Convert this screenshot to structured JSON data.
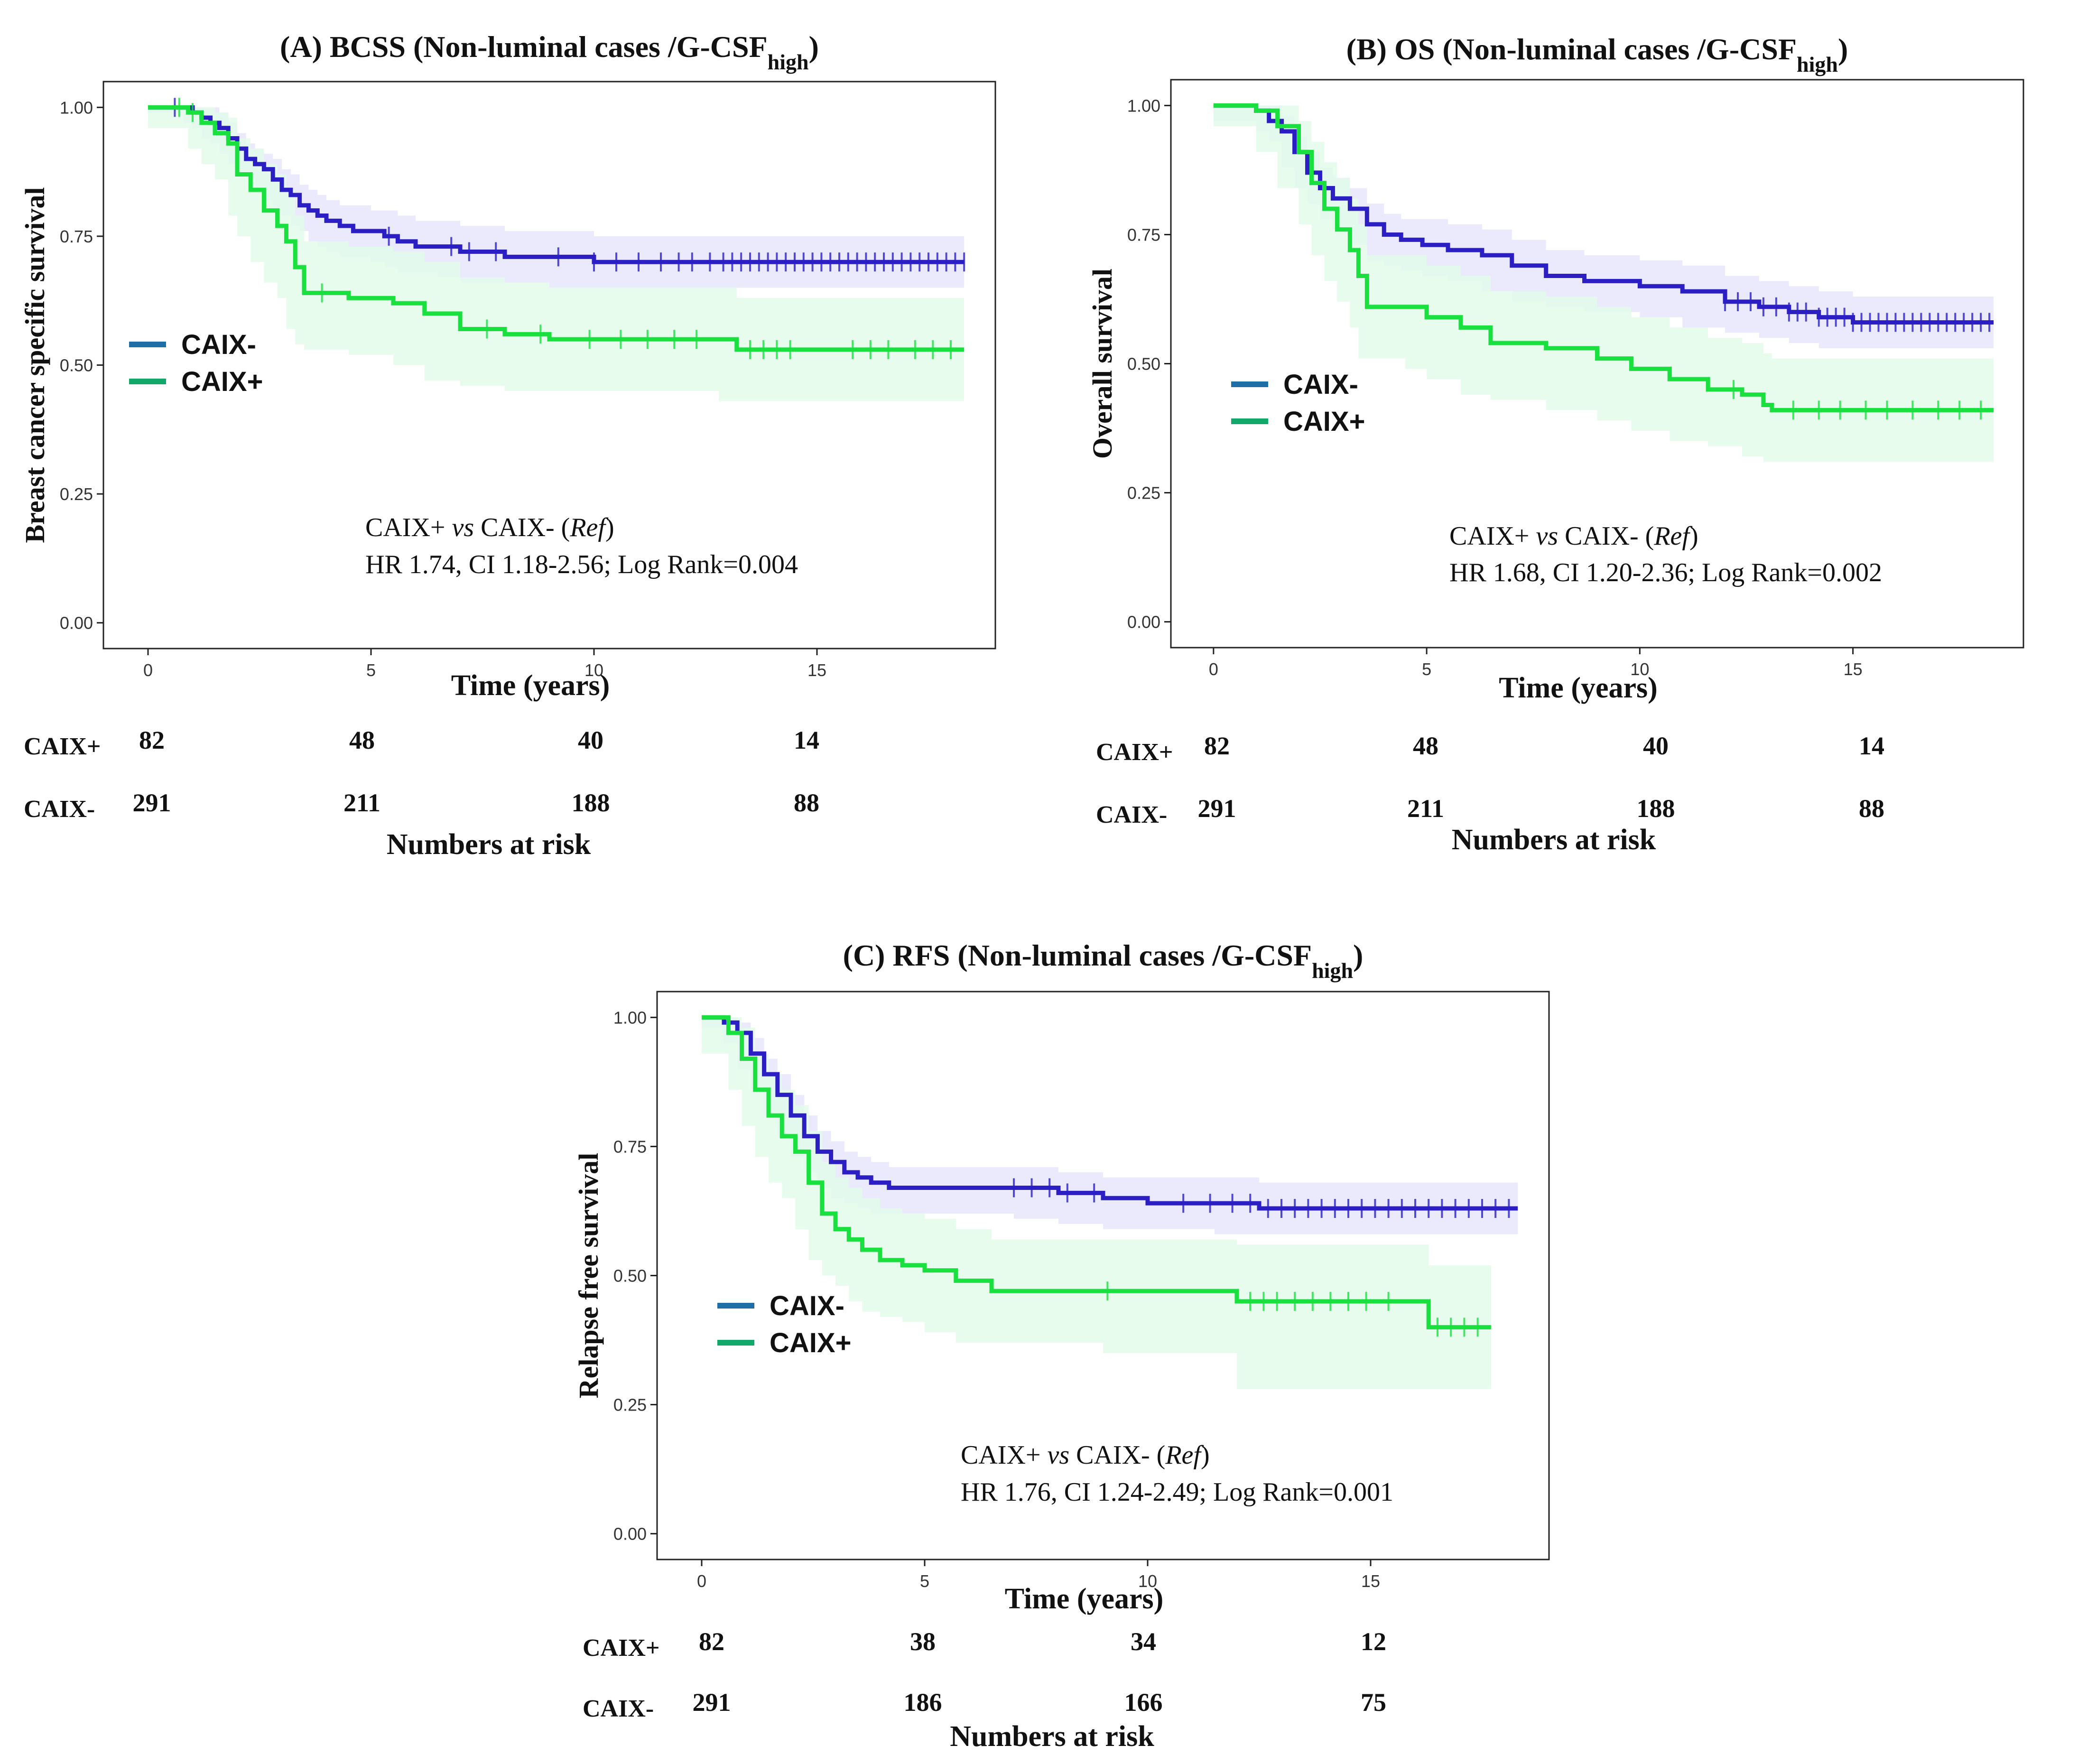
{
  "colors": {
    "caix_neg_line": "#2b1fc4",
    "caix_neg_band": "#e7e6fb",
    "caix_pos_line": "#19e03e",
    "caix_pos_band": "#e3fbea",
    "legend_neg": "#1f6fa6",
    "legend_pos": "#12a86a",
    "axis": "#222222",
    "text": "#111111"
  },
  "chart_data": [
    {
      "id": "A",
      "type": "line",
      "title_main": "(A) BCSS (Non-luminal cases /G-CSF",
      "title_sub": "high",
      "title_close": ")",
      "xlabel": "Time (years)",
      "ylabel": "Breast cancer specific survival",
      "xlim": [
        -1,
        19
      ],
      "ylim": [
        -0.05,
        1.05
      ],
      "xticks": [
        "0",
        "5",
        "10",
        "15"
      ],
      "yticks": [
        "0.00",
        "0.25",
        "0.50",
        "0.75",
        "1.00"
      ],
      "legend": [
        "CAIX-",
        "CAIX+"
      ],
      "annotation": {
        "line1_a": "CAIX+ ",
        "line1_vs": "vs",
        "line1_b": " CAIX- (",
        "line1_ref": "Ref",
        "line1_c": ")",
        "line2": "HR 1.74, CI 1.18-2.56; Log Rank=0.004"
      },
      "series": [
        {
          "name": "CAIX-",
          "x": [
            0,
            0.8,
            1.0,
            1.2,
            1.4,
            1.6,
            1.8,
            2.0,
            2.2,
            2.4,
            2.6,
            2.8,
            3.0,
            3.2,
            3.4,
            3.6,
            3.8,
            4.0,
            4.3,
            4.6,
            5.0,
            5.3,
            5.6,
            6.0,
            6.5,
            7.0,
            8.0,
            9.0,
            10.0,
            11.0,
            12.0,
            13.0,
            14.0,
            16.0,
            18.3
          ],
          "y": [
            1.0,
            1.0,
            0.99,
            0.98,
            0.97,
            0.96,
            0.94,
            0.92,
            0.9,
            0.89,
            0.88,
            0.86,
            0.84,
            0.83,
            0.81,
            0.8,
            0.79,
            0.78,
            0.77,
            0.76,
            0.76,
            0.75,
            0.74,
            0.73,
            0.73,
            0.72,
            0.71,
            0.71,
            0.7,
            0.7,
            0.7,
            0.7,
            0.7,
            0.7,
            0.7
          ],
          "lower": [
            1.0,
            0.99,
            0.97,
            0.96,
            0.94,
            0.93,
            0.91,
            0.89,
            0.87,
            0.86,
            0.84,
            0.82,
            0.8,
            0.79,
            0.77,
            0.76,
            0.74,
            0.73,
            0.72,
            0.71,
            0.71,
            0.7,
            0.69,
            0.68,
            0.68,
            0.67,
            0.66,
            0.66,
            0.65,
            0.65,
            0.65,
            0.65,
            0.65,
            0.65,
            0.65
          ],
          "upper": [
            1.0,
            1.0,
            1.0,
            1.0,
            1.0,
            0.99,
            0.97,
            0.95,
            0.93,
            0.92,
            0.91,
            0.9,
            0.88,
            0.87,
            0.85,
            0.84,
            0.83,
            0.82,
            0.81,
            0.81,
            0.8,
            0.8,
            0.79,
            0.78,
            0.78,
            0.77,
            0.76,
            0.76,
            0.75,
            0.75,
            0.75,
            0.75,
            0.75,
            0.75,
            0.75
          ],
          "censor_x": [
            0.6,
            5.4,
            6.8,
            7.2,
            7.8,
            9.2,
            10.0,
            10.5,
            11.0,
            11.5,
            11.9,
            12.2,
            12.6,
            12.9,
            13.1,
            13.3,
            13.5,
            13.7,
            13.9,
            14.1,
            14.3,
            14.5,
            14.7,
            14.9,
            15.1,
            15.3,
            15.5,
            15.7,
            15.9,
            16.1,
            16.3,
            16.5,
            16.7,
            16.9,
            17.1,
            17.3,
            17.5,
            17.7,
            17.9,
            18.1,
            18.3
          ]
        },
        {
          "name": "CAIX+",
          "x": [
            0,
            0.9,
            1.2,
            1.5,
            1.8,
            2.0,
            2.3,
            2.6,
            2.9,
            3.1,
            3.3,
            3.5,
            4.5,
            5.5,
            6.2,
            7.0,
            8.0,
            9.0,
            12.8,
            13.2,
            18.3
          ],
          "y": [
            1.0,
            0.99,
            0.97,
            0.95,
            0.93,
            0.87,
            0.84,
            0.8,
            0.77,
            0.74,
            0.69,
            0.64,
            0.63,
            0.62,
            0.6,
            0.57,
            0.56,
            0.55,
            0.55,
            0.53,
            0.53
          ],
          "lower": [
            1.0,
            0.96,
            0.92,
            0.89,
            0.86,
            0.79,
            0.75,
            0.7,
            0.66,
            0.63,
            0.57,
            0.54,
            0.53,
            0.52,
            0.5,
            0.47,
            0.46,
            0.45,
            0.45,
            0.43,
            0.43
          ],
          "upper": [
            1.0,
            1.0,
            1.0,
            0.99,
            0.98,
            0.94,
            0.92,
            0.89,
            0.87,
            0.84,
            0.79,
            0.74,
            0.73,
            0.72,
            0.7,
            0.67,
            0.66,
            0.65,
            0.65,
            0.63,
            0.63
          ],
          "censor_x": [
            0.7,
            1.0,
            3.9,
            7.6,
            8.8,
            9.9,
            10.6,
            11.2,
            11.8,
            12.3,
            13.5,
            13.8,
            14.1,
            14.4,
            15.8,
            16.2,
            16.6,
            17.2,
            17.6,
            18.0
          ]
        }
      ],
      "risk": {
        "title": "Numbers at risk",
        "rows": [
          {
            "label": "CAIX+",
            "values": [
              "82",
              "48",
              "40",
              "14"
            ]
          },
          {
            "label": "CAIX-",
            "values": [
              "291",
              "211",
              "188",
              "88"
            ]
          }
        ]
      }
    },
    {
      "id": "B",
      "type": "line",
      "title_main": "(B) OS (Non-luminal cases /G-CSF",
      "title_sub": "high",
      "title_close": ")",
      "xlabel": "Time (years)",
      "ylabel": "Overall survival",
      "xlim": [
        -1,
        19
      ],
      "ylim": [
        -0.05,
        1.05
      ],
      "xticks": [
        "0",
        "5",
        "10",
        "15"
      ],
      "yticks": [
        "0.00",
        "0.25",
        "0.50",
        "0.75",
        "1.00"
      ],
      "legend": [
        "CAIX-",
        "CAIX+"
      ],
      "annotation": {
        "line1_a": "CAIX+ ",
        "line1_vs": "vs",
        "line1_b": " CAIX- (",
        "line1_ref": "Ref",
        "line1_c": ")",
        "line2": "HR 1.68, CI 1.20-2.36; Log Rank=0.002"
      },
      "series": [
        {
          "name": "CAIX-",
          "x": [
            0,
            1.0,
            1.3,
            1.6,
            1.9,
            2.2,
            2.5,
            2.8,
            3.2,
            3.6,
            4.0,
            4.4,
            4.9,
            5.5,
            6.3,
            7.0,
            7.8,
            8.7,
            10.0,
            11.0,
            12.0,
            12.8,
            13.5,
            14.2,
            15.0,
            18.3
          ],
          "y": [
            1.0,
            0.99,
            0.97,
            0.95,
            0.91,
            0.87,
            0.84,
            0.82,
            0.8,
            0.77,
            0.75,
            0.74,
            0.73,
            0.72,
            0.71,
            0.69,
            0.67,
            0.66,
            0.65,
            0.64,
            0.62,
            0.61,
            0.6,
            0.59,
            0.58,
            0.58
          ],
          "lower": [
            1.0,
            0.97,
            0.95,
            0.93,
            0.88,
            0.84,
            0.81,
            0.78,
            0.76,
            0.73,
            0.7,
            0.69,
            0.68,
            0.67,
            0.66,
            0.64,
            0.62,
            0.61,
            0.6,
            0.59,
            0.57,
            0.56,
            0.55,
            0.54,
            0.53,
            0.53
          ],
          "upper": [
            1.0,
            1.0,
            1.0,
            0.98,
            0.94,
            0.91,
            0.88,
            0.86,
            0.84,
            0.81,
            0.79,
            0.78,
            0.78,
            0.77,
            0.76,
            0.74,
            0.72,
            0.71,
            0.7,
            0.69,
            0.67,
            0.66,
            0.65,
            0.64,
            0.63,
            0.63
          ],
          "censor_x": [
            12.0,
            12.3,
            12.6,
            12.9,
            13.2,
            13.5,
            13.7,
            13.9,
            14.2,
            14.4,
            14.6,
            14.8,
            15.0,
            15.2,
            15.4,
            15.6,
            15.8,
            16.0,
            16.2,
            16.4,
            16.6,
            16.8,
            17.0,
            17.2,
            17.4,
            17.6,
            17.8,
            18.0,
            18.2
          ]
        },
        {
          "name": "CAIX+",
          "x": [
            0,
            1.0,
            1.5,
            2.0,
            2.3,
            2.6,
            2.9,
            3.2,
            3.4,
            3.6,
            4.5,
            5.0,
            5.8,
            6.5,
            7.8,
            9.0,
            9.8,
            10.7,
            11.6,
            12.4,
            12.9,
            13.1,
            18.3
          ],
          "y": [
            1.0,
            0.99,
            0.96,
            0.91,
            0.85,
            0.8,
            0.76,
            0.72,
            0.67,
            0.61,
            0.61,
            0.59,
            0.57,
            0.54,
            0.53,
            0.51,
            0.49,
            0.47,
            0.45,
            0.44,
            0.42,
            0.41,
            0.41
          ],
          "lower": [
            1.0,
            0.96,
            0.91,
            0.84,
            0.77,
            0.71,
            0.66,
            0.62,
            0.57,
            0.51,
            0.51,
            0.49,
            0.47,
            0.44,
            0.43,
            0.41,
            0.39,
            0.37,
            0.35,
            0.34,
            0.32,
            0.31,
            0.31
          ],
          "upper": [
            1.0,
            1.0,
            1.0,
            0.97,
            0.93,
            0.89,
            0.86,
            0.82,
            0.77,
            0.71,
            0.71,
            0.69,
            0.67,
            0.64,
            0.63,
            0.61,
            0.59,
            0.57,
            0.55,
            0.54,
            0.52,
            0.51,
            0.51
          ],
          "censor_x": [
            12.2,
            13.6,
            14.2,
            14.7,
            15.3,
            15.8,
            16.4,
            17.0,
            17.5,
            18.0
          ]
        }
      ],
      "risk": {
        "title": "Numbers at risk",
        "rows": [
          {
            "label": "CAIX+",
            "values": [
              "82",
              "48",
              "40",
              "14"
            ]
          },
          {
            "label": "CAIX-",
            "values": [
              "291",
              "211",
              "188",
              "88"
            ]
          }
        ]
      }
    },
    {
      "id": "C",
      "type": "line",
      "title_main": "(C) RFS (Non-luminal cases /G-CSF",
      "title_sub": "high",
      "title_close": ")",
      "xlabel": "Time (years)",
      "ylabel": "Relapse free survival",
      "xlim": [
        -1,
        19
      ],
      "ylim": [
        -0.05,
        1.05
      ],
      "xticks": [
        "0",
        "5",
        "10",
        "15"
      ],
      "yticks": [
        "0.00",
        "0.25",
        "0.50",
        "0.75",
        "1.00"
      ],
      "legend": [
        "CAIX-",
        "CAIX+"
      ],
      "annotation": {
        "line1_a": "CAIX+ ",
        "line1_vs": "vs",
        "line1_b": " CAIX- (",
        "line1_ref": "Ref",
        "line1_c": ")",
        "line2": "HR 1.76, CI 1.24-2.49; Log Rank=0.001"
      },
      "series": [
        {
          "name": "CAIX-",
          "x": [
            0,
            0.5,
            0.8,
            1.1,
            1.4,
            1.7,
            2.0,
            2.3,
            2.6,
            2.9,
            3.2,
            3.5,
            3.8,
            4.2,
            5.0,
            6.0,
            7.0,
            8.0,
            9.0,
            10.0,
            11.5,
            12.5,
            18.3
          ],
          "y": [
            1.0,
            0.99,
            0.97,
            0.93,
            0.89,
            0.85,
            0.81,
            0.77,
            0.74,
            0.72,
            0.7,
            0.69,
            0.68,
            0.67,
            0.67,
            0.67,
            0.67,
            0.66,
            0.65,
            0.64,
            0.64,
            0.63,
            0.63
          ],
          "lower": [
            1.0,
            0.98,
            0.95,
            0.9,
            0.86,
            0.81,
            0.77,
            0.73,
            0.7,
            0.67,
            0.65,
            0.64,
            0.63,
            0.62,
            0.62,
            0.62,
            0.62,
            0.61,
            0.6,
            0.59,
            0.59,
            0.58,
            0.58
          ],
          "upper": [
            1.0,
            1.0,
            0.99,
            0.96,
            0.92,
            0.89,
            0.85,
            0.81,
            0.78,
            0.76,
            0.74,
            0.73,
            0.72,
            0.71,
            0.71,
            0.71,
            0.71,
            0.7,
            0.69,
            0.69,
            0.69,
            0.68,
            0.68
          ],
          "censor_x": [
            7.0,
            7.4,
            7.8,
            8.2,
            8.8,
            10.8,
            11.4,
            11.9,
            12.3,
            12.7,
            13.0,
            13.3,
            13.6,
            13.9,
            14.2,
            14.5,
            14.8,
            15.1,
            15.4,
            15.7,
            16.0,
            16.3,
            16.6,
            16.9,
            17.2,
            17.5,
            17.8,
            18.1
          ]
        },
        {
          "name": "CAIX+",
          "x": [
            0,
            0.6,
            0.9,
            1.2,
            1.5,
            1.8,
            2.1,
            2.4,
            2.7,
            3.0,
            3.3,
            3.6,
            4.0,
            4.5,
            5.0,
            5.7,
            6.5,
            9.0,
            12.0,
            16.3,
            17.7
          ],
          "y": [
            1.0,
            0.97,
            0.92,
            0.86,
            0.81,
            0.77,
            0.74,
            0.68,
            0.62,
            0.59,
            0.57,
            0.55,
            0.53,
            0.52,
            0.51,
            0.49,
            0.47,
            0.47,
            0.45,
            0.4,
            0.4
          ],
          "lower": [
            1.0,
            0.93,
            0.86,
            0.79,
            0.73,
            0.68,
            0.65,
            0.59,
            0.53,
            0.5,
            0.48,
            0.45,
            0.43,
            0.42,
            0.41,
            0.39,
            0.37,
            0.37,
            0.35,
            0.28,
            0.28
          ],
          "upper": [
            1.0,
            1.0,
            0.98,
            0.93,
            0.89,
            0.86,
            0.83,
            0.78,
            0.72,
            0.69,
            0.67,
            0.65,
            0.63,
            0.62,
            0.61,
            0.59,
            0.57,
            0.57,
            0.56,
            0.52,
            0.52
          ],
          "censor_x": [
            9.1,
            12.3,
            12.6,
            12.9,
            13.3,
            13.7,
            14.1,
            14.5,
            14.9,
            15.4,
            16.5,
            16.8,
            17.1,
            17.4
          ]
        }
      ],
      "risk": {
        "title": "Numbers at risk",
        "rows": [
          {
            "label": "CAIX+",
            "values": [
              "82",
              "38",
              "34",
              "12"
            ]
          },
          {
            "label": "CAIX-",
            "values": [
              "291",
              "186",
              "166",
              "75"
            ]
          }
        ]
      }
    }
  ]
}
